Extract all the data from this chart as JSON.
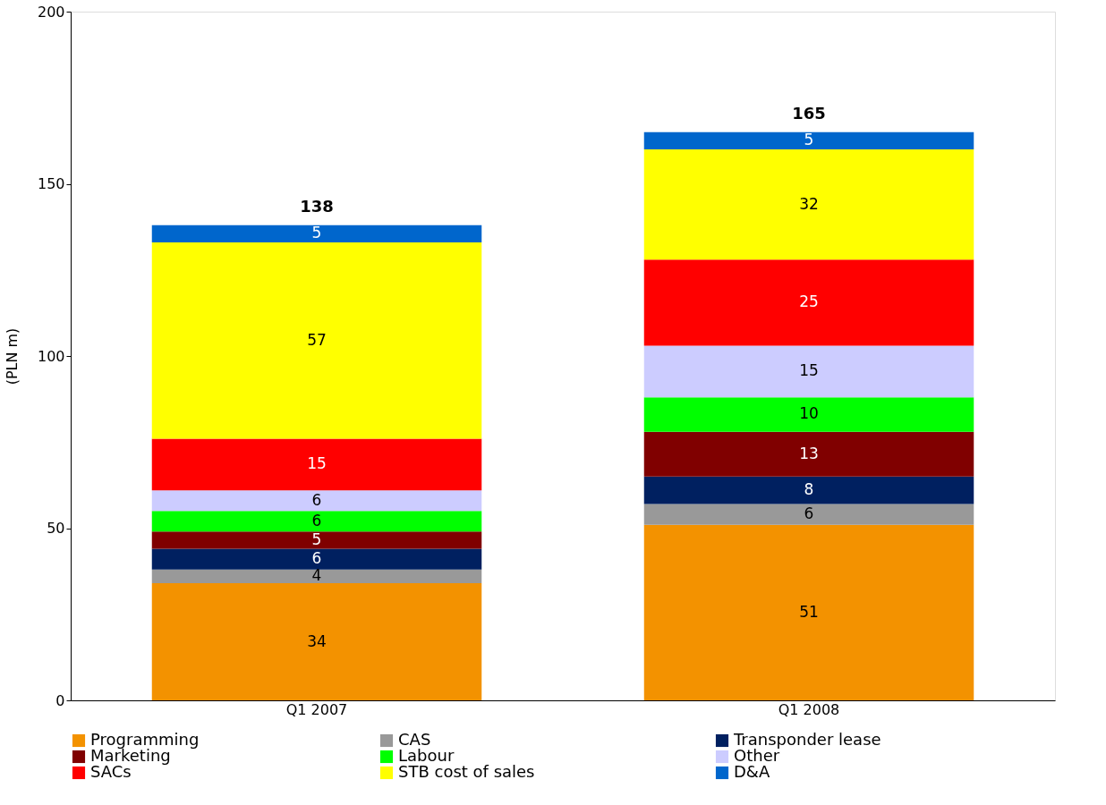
{
  "chart_data": {
    "type": "bar",
    "stacked": true,
    "ylabel": "(PLN m)",
    "categories": [
      "Q1 2007",
      "Q1 2008"
    ],
    "series": [
      {
        "name": "Programming",
        "color": "#f39200",
        "values": [
          34,
          51
        ]
      },
      {
        "name": "CAS",
        "color": "#999999",
        "values": [
          4,
          6
        ]
      },
      {
        "name": "Transponder lease",
        "color": "#002060",
        "values": [
          6,
          8
        ]
      },
      {
        "name": "Marketing",
        "color": "#800000",
        "values": [
          5,
          13
        ]
      },
      {
        "name": "Labour",
        "color": "#00ff00",
        "values": [
          6,
          10
        ]
      },
      {
        "name": "Other",
        "color": "#ccccff",
        "values": [
          6,
          15
        ]
      },
      {
        "name": "SACs",
        "color": "#ff0000",
        "values": [
          15,
          25
        ]
      },
      {
        "name": "STB cost of sales",
        "color": "#ffff00",
        "values": [
          57,
          32
        ]
      },
      {
        "name": "D&A",
        "color": "#0066cc",
        "values": [
          5,
          5
        ]
      }
    ],
    "totals": [
      "138",
      "165"
    ],
    "ylim": [
      0,
      200
    ],
    "yticks": [
      0,
      50,
      100,
      150,
      200
    ],
    "grid": false,
    "legend": "bottom",
    "data_labels": true
  }
}
